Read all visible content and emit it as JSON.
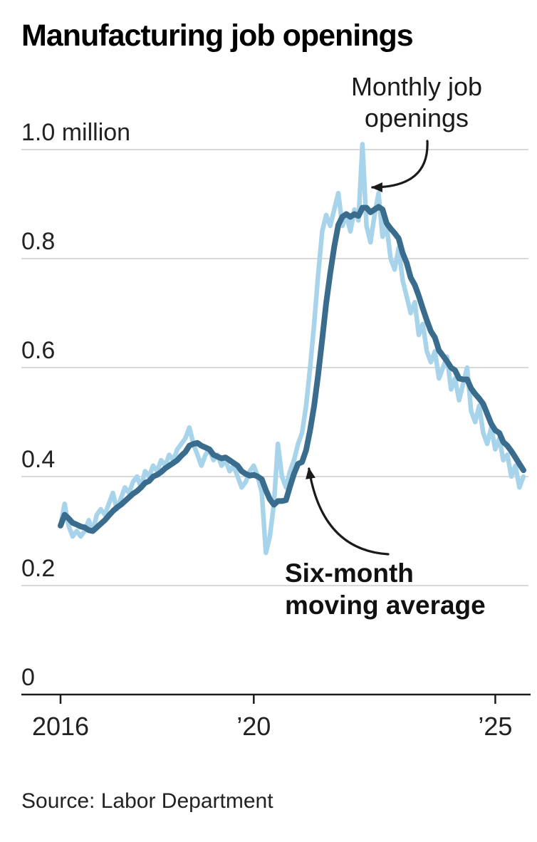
{
  "title": "Manufacturing job openings",
  "source": "Source: Labor Department",
  "colors": {
    "monthly": "#a7d4ea",
    "moving_average": "#3a6c8d",
    "gridline": "#d9d9d9",
    "axis": "#1a1a1a",
    "text": "#222222"
  },
  "chart_data": {
    "type": "line",
    "title": "Manufacturing job openings",
    "unit": "millions of job openings",
    "frequency": "monthly",
    "x_start": "2016-01",
    "x_end": "2025-08",
    "ylim": [
      0,
      1.0
    ],
    "grid": true,
    "series": [
      {
        "name": "Monthly job openings",
        "values": [
          0.31,
          0.35,
          0.31,
          0.29,
          0.3,
          0.29,
          0.3,
          0.32,
          0.3,
          0.33,
          0.34,
          0.33,
          0.35,
          0.37,
          0.34,
          0.36,
          0.38,
          0.37,
          0.39,
          0.4,
          0.38,
          0.41,
          0.4,
          0.42,
          0.41,
          0.43,
          0.42,
          0.44,
          0.43,
          0.45,
          0.46,
          0.47,
          0.49,
          0.46,
          0.44,
          0.42,
          0.44,
          0.45,
          0.43,
          0.44,
          0.42,
          0.43,
          0.41,
          0.42,
          0.4,
          0.38,
          0.39,
          0.41,
          0.42,
          0.4,
          0.37,
          0.26,
          0.29,
          0.35,
          0.46,
          0.4,
          0.38,
          0.41,
          0.43,
          0.46,
          0.48,
          0.53,
          0.6,
          0.68,
          0.77,
          0.85,
          0.88,
          0.86,
          0.89,
          0.92,
          0.86,
          0.88,
          0.85,
          0.89,
          0.87,
          1.01,
          0.86,
          0.83,
          0.88,
          0.92,
          0.84,
          0.86,
          0.8,
          0.78,
          0.82,
          0.76,
          0.73,
          0.7,
          0.72,
          0.66,
          0.68,
          0.63,
          0.61,
          0.63,
          0.58,
          0.6,
          0.62,
          0.56,
          0.58,
          0.54,
          0.57,
          0.6,
          0.52,
          0.5,
          0.53,
          0.48,
          0.46,
          0.49,
          0.45,
          0.47,
          0.43,
          0.44,
          0.4,
          0.42,
          0.38,
          0.4
        ]
      }
    ],
    "moving_average": {
      "name": "Six-month moving average",
      "window": 6,
      "derived_from": "trailing 6-month mean of Monthly job openings series"
    },
    "yticks": [
      {
        "value": 1.0,
        "label": "1.0 million"
      },
      {
        "value": 0.8,
        "label": "0.8"
      },
      {
        "value": 0.6,
        "label": "0.6"
      },
      {
        "value": 0.4,
        "label": "0.4"
      },
      {
        "value": 0.2,
        "label": "0.2"
      },
      {
        "value": 0,
        "label": "0"
      }
    ],
    "xticks": [
      {
        "label": "2016",
        "month_index": 0
      },
      {
        "label": "’20",
        "month_index": 48
      },
      {
        "label": "’25",
        "month_index": 108
      }
    ],
    "annotations": [
      {
        "id": "monthly",
        "lines": [
          "Monthly job",
          "openings"
        ],
        "bold": false
      },
      {
        "id": "moving-average",
        "lines": [
          "Six-month",
          "moving average"
        ],
        "bold": true
      }
    ],
    "legend_position": "annotated-inline"
  }
}
